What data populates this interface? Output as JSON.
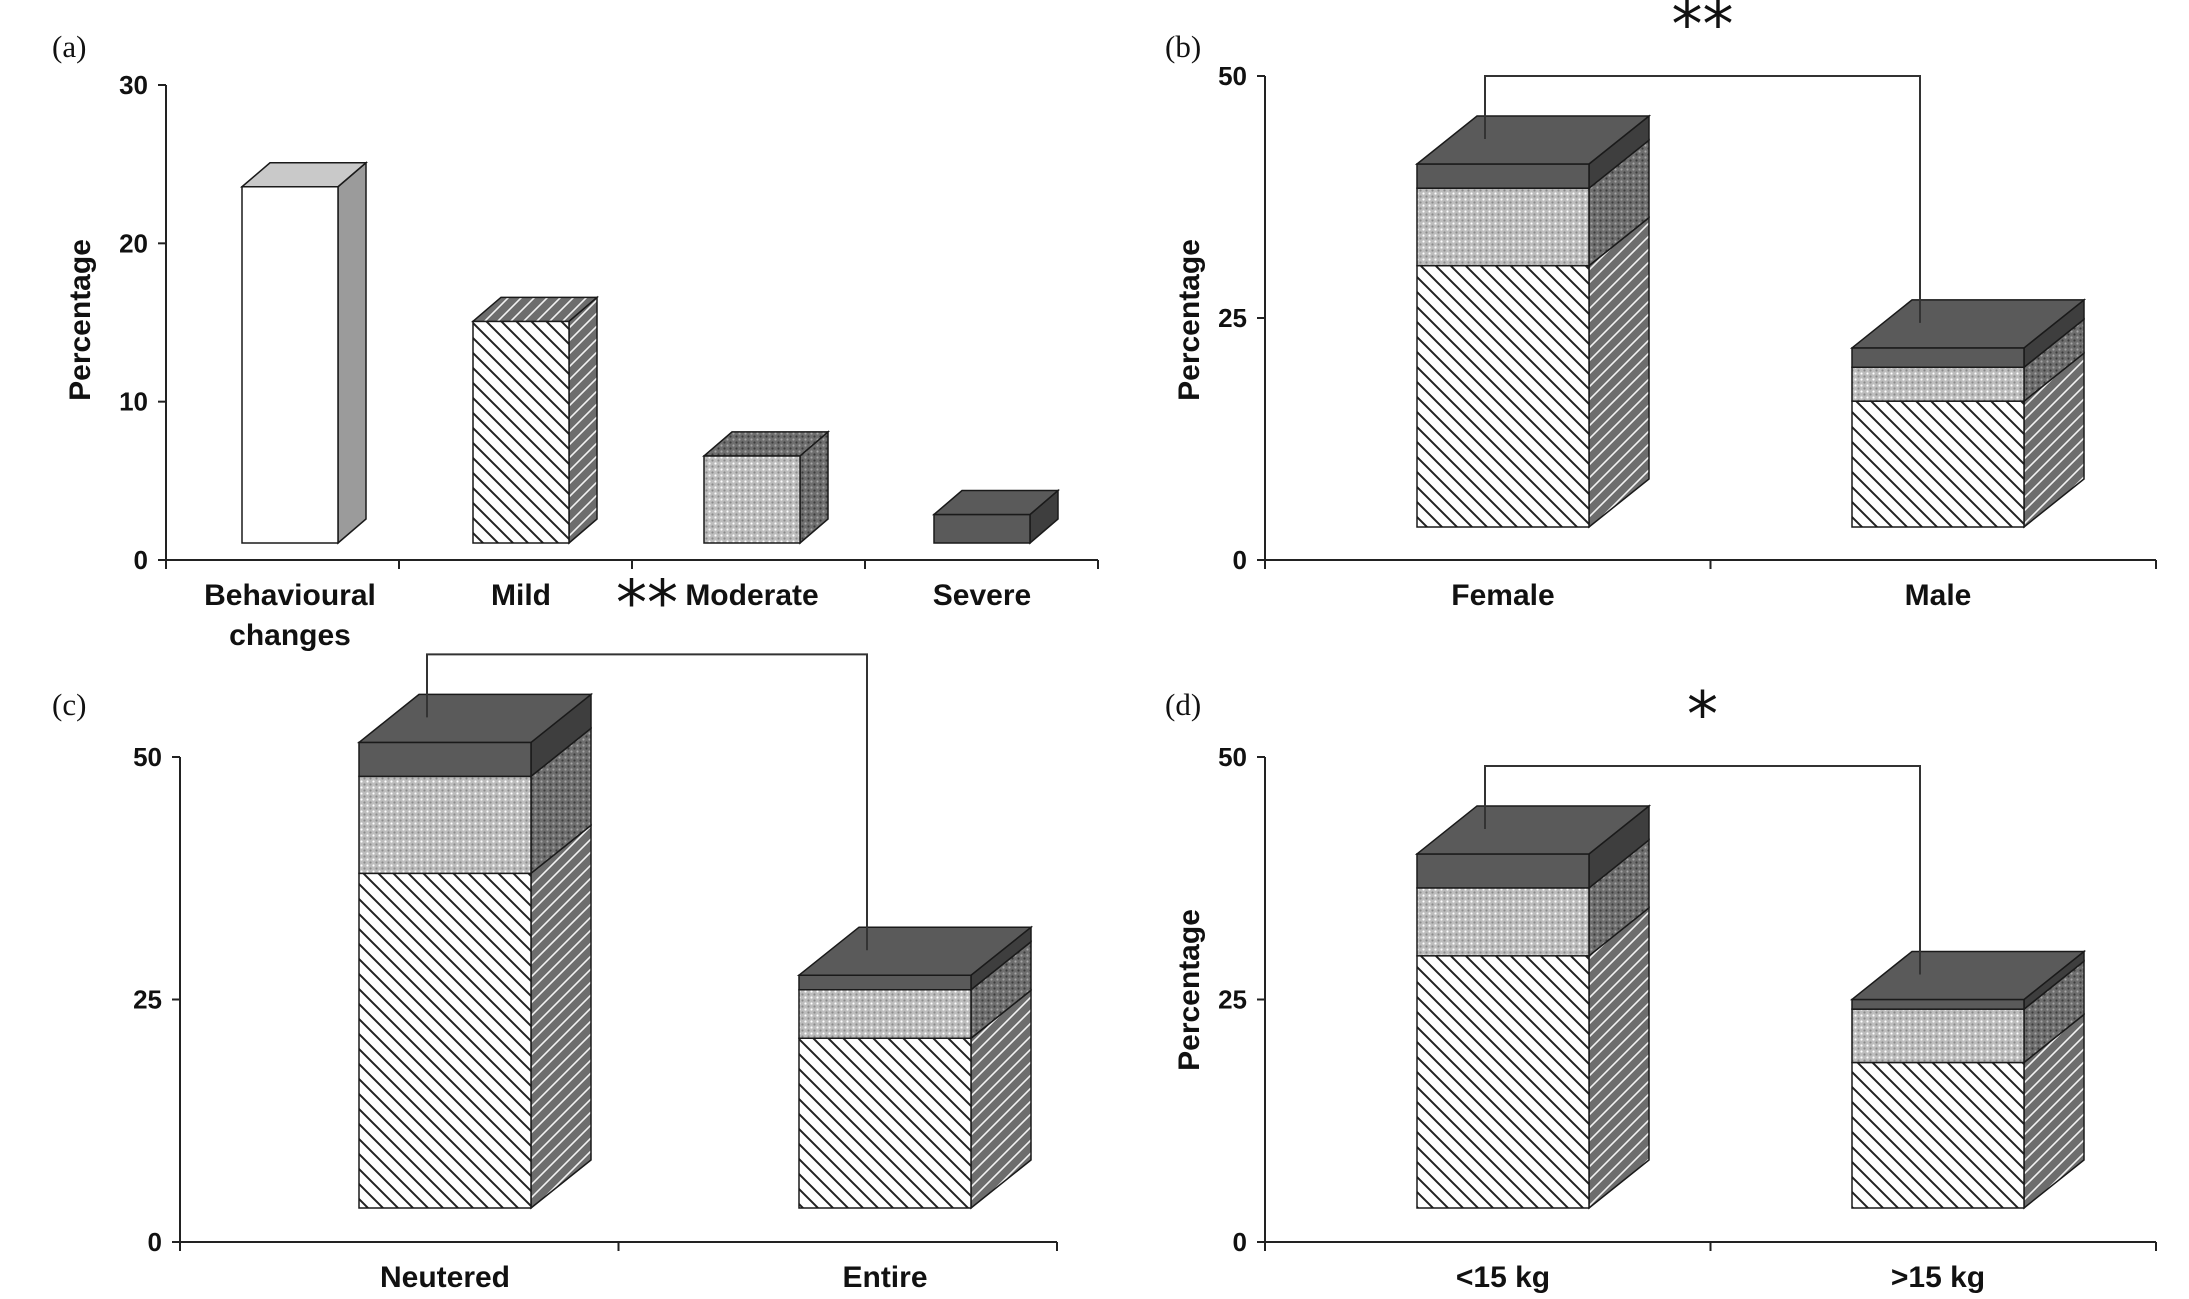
{
  "chart_data": [
    {
      "panel_label": "(a)",
      "type": "bar",
      "ylabel": "Percentage",
      "ylim": [
        0,
        30
      ],
      "yticks": [
        "0",
        "10",
        "20",
        "30"
      ],
      "categories": [
        {
          "label_lines": [
            "Behavioural",
            "changes"
          ],
          "value": 22.5,
          "pattern": "white"
        },
        {
          "label_lines": [
            "Mild"
          ],
          "value": 14,
          "pattern": "hatch"
        },
        {
          "label_lines": [
            "Moderate"
          ],
          "value": 5.5,
          "pattern": "dots"
        },
        {
          "label_lines": [
            "Severe"
          ],
          "value": 1.8,
          "pattern": "dark"
        }
      ],
      "significance": ""
    },
    {
      "panel_label": "(b)",
      "type": "bar",
      "stacked": true,
      "ylabel": "Percentage",
      "ylim": [
        0,
        50
      ],
      "yticks": [
        "0",
        "25",
        "50"
      ],
      "categories": [
        {
          "label": "Female"
        },
        {
          "label": "Male"
        }
      ],
      "series": [
        {
          "pattern": "hatch",
          "values": [
            27,
            13
          ]
        },
        {
          "pattern": "dots",
          "values": [
            8,
            3.5
          ]
        },
        {
          "pattern": "dark",
          "values": [
            2.5,
            2
          ]
        }
      ],
      "significance": "**"
    },
    {
      "panel_label": "(c)",
      "type": "bar",
      "stacked": true,
      "ylabel": "",
      "ylim": [
        0,
        50
      ],
      "yticks": [
        "0",
        "25",
        "50"
      ],
      "categories": [
        {
          "label": "Neutered"
        },
        {
          "label": "Entire"
        }
      ],
      "series": [
        {
          "pattern": "hatch",
          "values": [
            34.5,
            17.5
          ]
        },
        {
          "pattern": "dots",
          "values": [
            10,
            5
          ]
        },
        {
          "pattern": "dark",
          "values": [
            3.5,
            1.5
          ]
        }
      ],
      "significance": "**"
    },
    {
      "panel_label": "(d)",
      "type": "bar",
      "stacked": true,
      "ylabel": "Percentage",
      "ylim": [
        0,
        50
      ],
      "yticks": [
        "0",
        "25",
        "50"
      ],
      "categories": [
        {
          "label": "<15 kg"
        },
        {
          "label": ">15 kg"
        }
      ],
      "series": [
        {
          "pattern": "hatch",
          "values": [
            26,
            15
          ]
        },
        {
          "pattern": "dots",
          "values": [
            7,
            5.5
          ]
        },
        {
          "pattern": "dark",
          "values": [
            3.5,
            1
          ]
        }
      ],
      "significance": "*"
    }
  ],
  "colors": {
    "dark": "#5a5a5a",
    "dark_side": "#3e3e3e",
    "white_side": "#9b9b9b",
    "white_top": "#c9c9c9",
    "dots": "#bcbcbc",
    "dots_side": "#707070",
    "hatch_side": "#6d6d6d",
    "axis": "#222222"
  }
}
